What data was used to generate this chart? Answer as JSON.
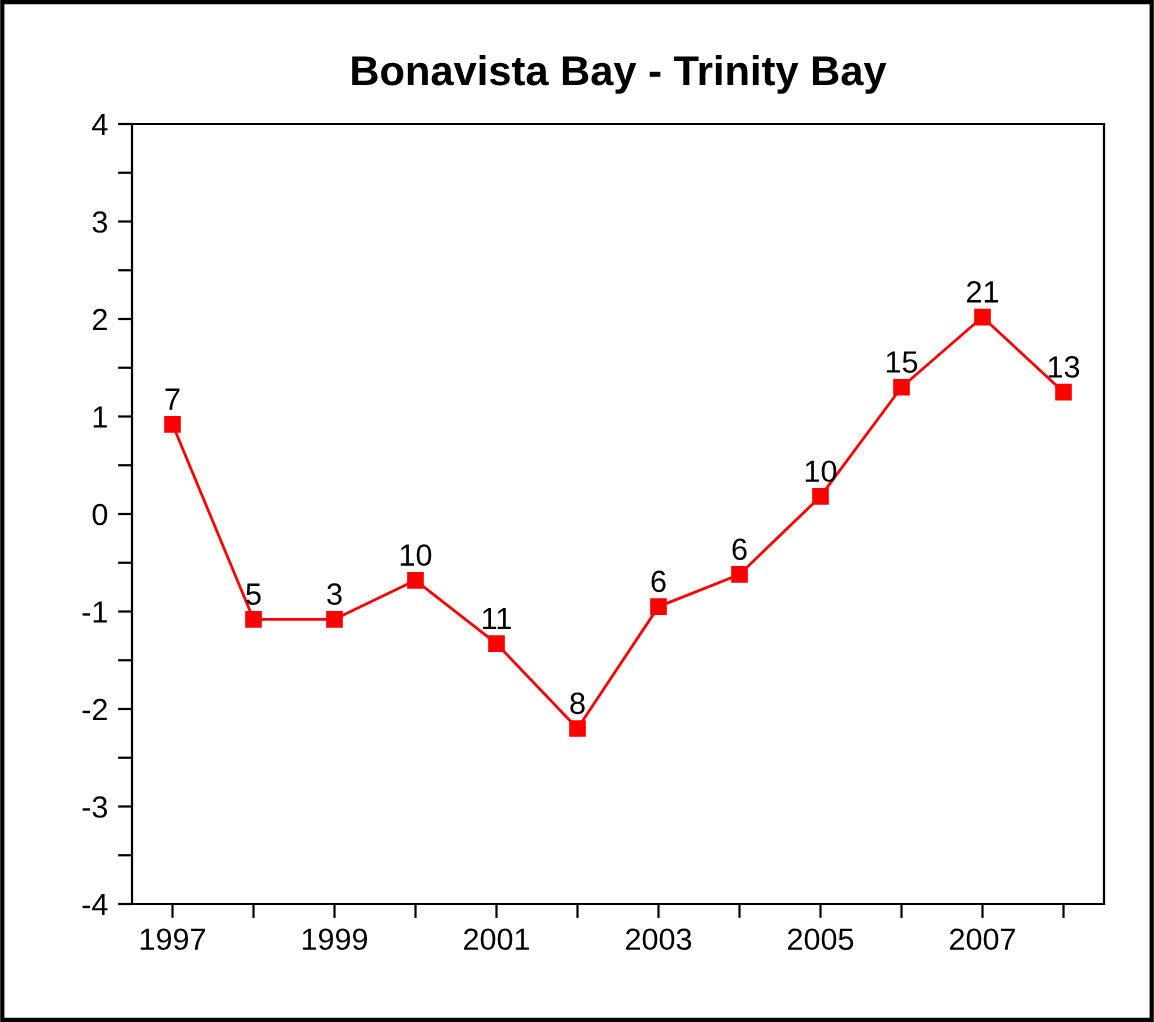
{
  "chart_data": {
    "type": "line",
    "title": "Bonavista Bay - Trinity Bay",
    "x": [
      1997,
      1998,
      1999,
      2000,
      2001,
      2002,
      2003,
      2004,
      2005,
      2006,
      2007,
      2008
    ],
    "series": [
      {
        "color": "#ff0000",
        "values": [
          0.92,
          -1.08,
          -1.08,
          -0.68,
          -1.33,
          -2.2,
          -0.95,
          -0.62,
          0.18,
          1.3,
          2.02,
          1.25
        ]
      }
    ],
    "annotations": [
      {
        "text": "7",
        "x": 1997,
        "y": 0.92
      },
      {
        "text": "5",
        "x": 1998,
        "y": -1.08
      },
      {
        "text": "3",
        "x": 1999,
        "y": -1.08
      },
      {
        "text": "10",
        "x": 2000,
        "y": -0.68
      },
      {
        "text": "11",
        "x": 2001,
        "y": -1.33
      },
      {
        "text": "8",
        "x": 2002,
        "y": -2.2
      },
      {
        "text": "6",
        "x": 2003,
        "y": -0.95
      },
      {
        "text": "6",
        "x": 2004,
        "y": -0.62
      },
      {
        "text": "10",
        "x": 2005,
        "y": 0.18
      },
      {
        "text": "15",
        "x": 2006,
        "y": 1.3
      },
      {
        "text": "21",
        "x": 2007,
        "y": 2.02
      },
      {
        "text": "13",
        "x": 2008,
        "y": 1.25
      }
    ],
    "xlim": [
      1996.5,
      2008.5
    ],
    "xticks": [
      1997,
      {
        "value": 1998,
        "label": null
      },
      1999,
      {
        "value": 2000,
        "label": null
      },
      2001,
      {
        "value": 2002,
        "label": null
      },
      2003,
      {
        "value": 2004,
        "label": null
      },
      2005,
      {
        "value": 2006,
        "label": null
      },
      2007,
      {
        "value": 2008,
        "label": null
      }
    ],
    "ylim": [
      -4,
      4
    ],
    "yticks": [
      -4,
      {
        "value": -3.5,
        "label": null
      },
      -3,
      {
        "value": -2.5,
        "label": null
      },
      -2,
      {
        "value": -1.5,
        "label": null
      },
      -1,
      {
        "value": -0.5,
        "label": null
      },
      0,
      {
        "value": 0.5,
        "label": null
      },
      1,
      {
        "value": 1.5,
        "label": null
      },
      2,
      {
        "value": 2.5,
        "label": null
      },
      3,
      {
        "value": 3.5,
        "label": null
      },
      4
    ],
    "grid": false,
    "legend": false,
    "marker": "square",
    "line_style": "solid"
  }
}
